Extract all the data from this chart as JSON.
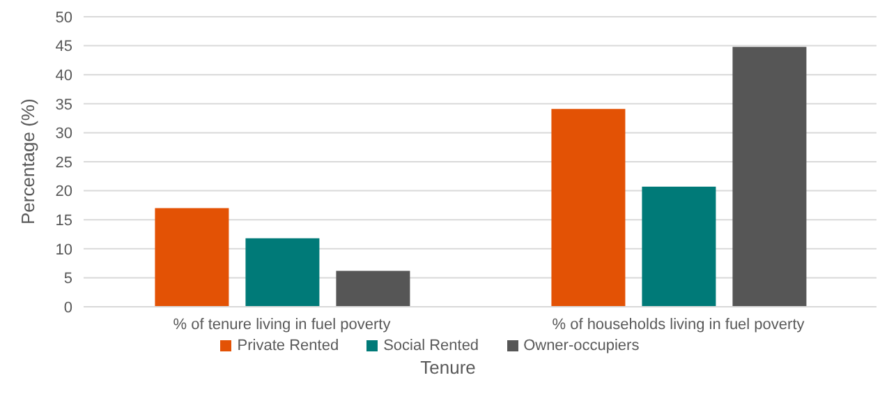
{
  "chart_data": {
    "type": "bar",
    "xlabel": "Tenure",
    "ylabel": "Percentage (%)",
    "categories": [
      "% of tenure living in fuel poverty",
      "% of households living in fuel poverty"
    ],
    "series": [
      {
        "name": "Private Rented",
        "color": "#e35205",
        "values": [
          17,
          34.1
        ]
      },
      {
        "name": "Social Rented",
        "color": "#007a78",
        "values": [
          11.8,
          20.7
        ]
      },
      {
        "name": "Owner-occupiers",
        "color": "#565656",
        "values": [
          6.2,
          44.8
        ]
      }
    ],
    "ylim": [
      0,
      50
    ],
    "yticks": [
      0,
      5,
      10,
      15,
      20,
      25,
      30,
      35,
      40,
      45,
      50
    ],
    "grid": "y",
    "legend": "bottom"
  }
}
